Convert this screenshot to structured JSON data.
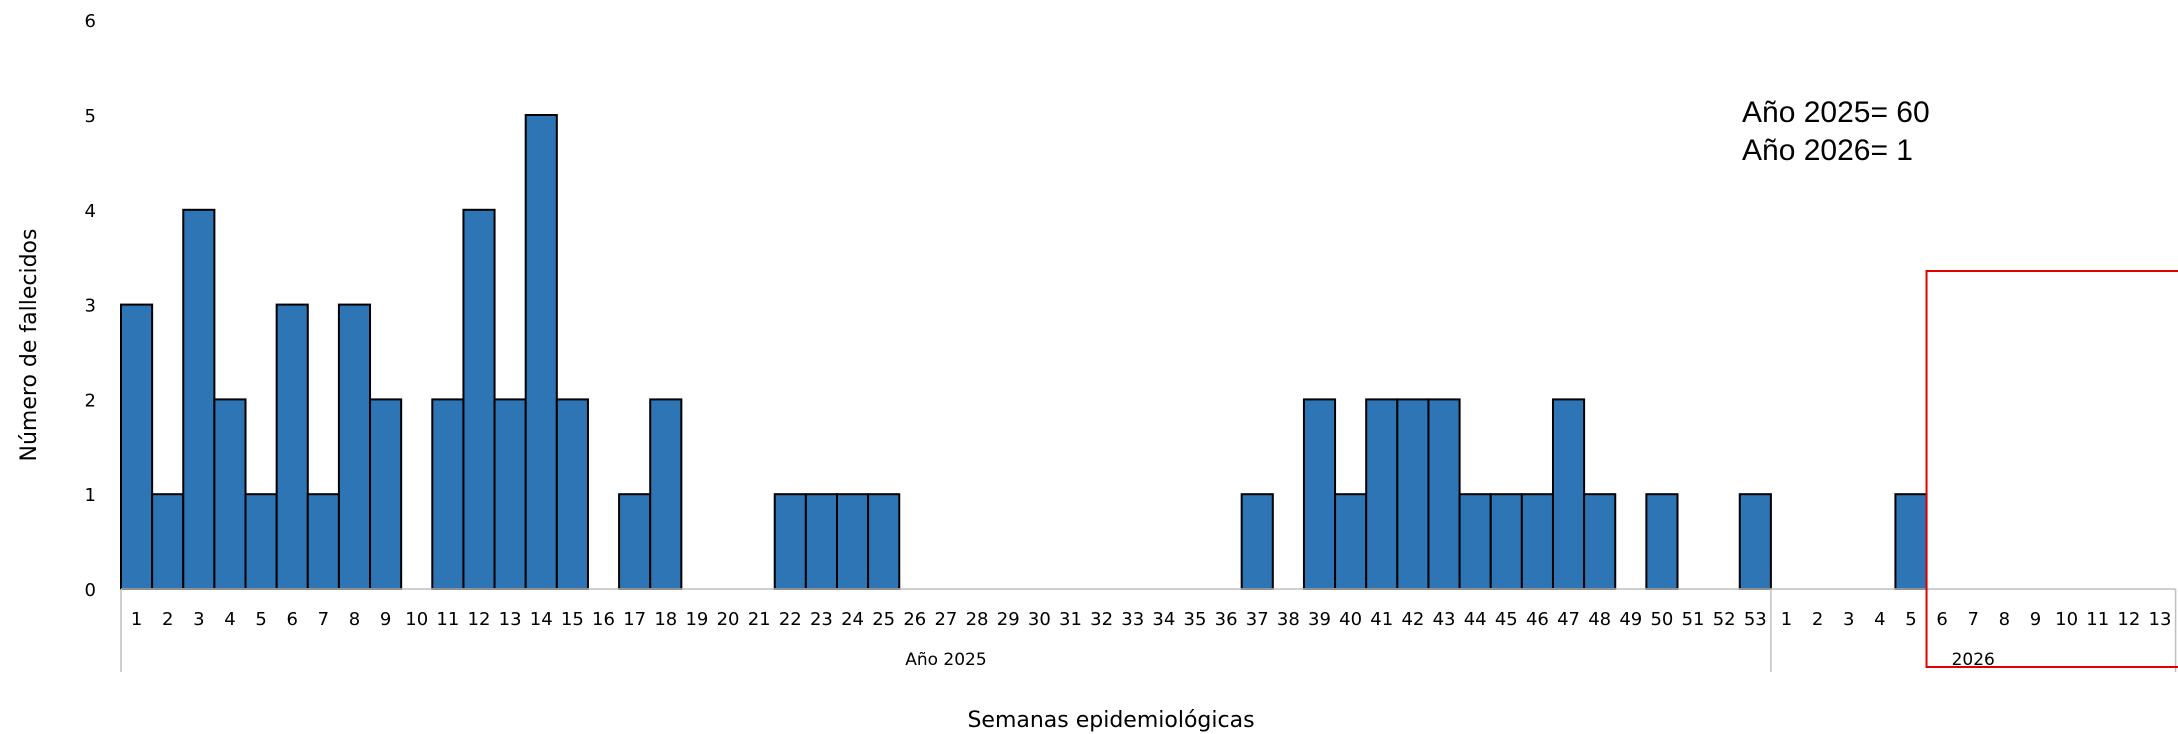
{
  "chart_data": {
    "type": "bar",
    "ylabel": "Número de fallecidos",
    "xlabel": "Semanas epidemiológicas",
    "ylim": [
      0,
      6
    ],
    "y_ticks": [
      "0",
      "1",
      "2",
      "3",
      "4",
      "5",
      "6"
    ],
    "groups": [
      {
        "label": "Año 2025",
        "categories": [
          "1",
          "2",
          "3",
          "4",
          "5",
          "6",
          "7",
          "8",
          "9",
          "10",
          "11",
          "12",
          "13",
          "14",
          "15",
          "16",
          "17",
          "18",
          "19",
          "20",
          "21",
          "22",
          "23",
          "24",
          "25",
          "26",
          "27",
          "28",
          "29",
          "30",
          "31",
          "32",
          "33",
          "34",
          "35",
          "36",
          "37",
          "38",
          "39",
          "40",
          "41",
          "42",
          "43",
          "44",
          "45",
          "46",
          "47",
          "48",
          "49",
          "50",
          "51",
          "52",
          "53"
        ],
        "values": [
          3,
          1,
          4,
          2,
          1,
          3,
          1,
          3,
          2,
          0,
          2,
          4,
          2,
          5,
          2,
          0,
          1,
          2,
          0,
          0,
          0,
          1,
          1,
          1,
          1,
          0,
          0,
          0,
          0,
          0,
          0,
          0,
          0,
          0,
          0,
          0,
          1,
          0,
          2,
          1,
          2,
          2,
          2,
          1,
          1,
          1,
          2,
          1,
          0,
          1,
          0,
          0,
          1
        ]
      },
      {
        "label": "2026",
        "categories": [
          "1",
          "2",
          "3",
          "4",
          "5",
          "6",
          "7",
          "8",
          "9",
          "10",
          "11",
          "12",
          "13"
        ],
        "values": [
          0,
          0,
          0,
          0,
          1,
          0,
          0,
          0,
          0,
          0,
          0,
          0,
          0
        ]
      }
    ],
    "annotations": [
      "Año 2025= 60",
      "Año 2026= 1"
    ],
    "highlight": {
      "group": "2026",
      "from_week": "6",
      "to_week": "13",
      "color": "#e00000"
    },
    "colors": {
      "bar": "#2e75b6",
      "bar_edge": "#000000",
      "axis": "#bfbfbf"
    },
    "grid": false
  }
}
